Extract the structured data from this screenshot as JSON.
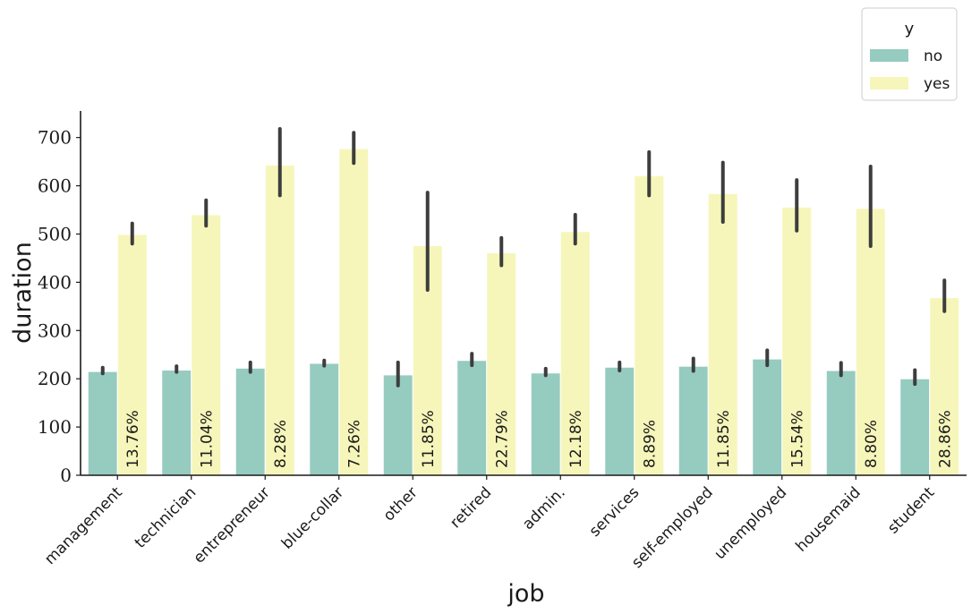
{
  "chart_data": {
    "type": "bar",
    "xlabel": "job",
    "ylabel": "duration",
    "ylim": [
      0,
      755
    ],
    "yticks": [
      0,
      100,
      200,
      300,
      400,
      500,
      600,
      700
    ],
    "categories": [
      "management",
      "technician",
      "entrepreneur",
      "blue-collar",
      "other",
      "retired",
      "admin.",
      "services",
      "self-employed",
      "unemployed",
      "housemaid",
      "student"
    ],
    "series": [
      {
        "name": "no",
        "color": "#96cbc0",
        "values": [
          215,
          218,
          222,
          232,
          208,
          238,
          212,
          224,
          226,
          241,
          217,
          200
        ],
        "ci_low": [
          211,
          214,
          214,
          227,
          186,
          228,
          207,
          217,
          216,
          228,
          207,
          189
        ],
        "ci_high": [
          223,
          226,
          234,
          238,
          234,
          252,
          221,
          234,
          242,
          259,
          233,
          218
        ]
      },
      {
        "name": "yes",
        "color": "#f6f6bb",
        "values": [
          499,
          540,
          643,
          677,
          476,
          461,
          505,
          621,
          584,
          556,
          553,
          368
        ],
        "ci_low": [
          480,
          517,
          580,
          647,
          384,
          435,
          480,
          580,
          525,
          507,
          475,
          340
        ],
        "ci_high": [
          522,
          570,
          718,
          710,
          586,
          492,
          540,
          670,
          648,
          612,
          640,
          404
        ]
      }
    ],
    "annotations": [
      "13.76%",
      "11.04%",
      "8.28%",
      "7.26%",
      "11.85%",
      "22.79%",
      "12.18%",
      "8.89%",
      "11.85%",
      "15.54%",
      "8.80%",
      "28.86%"
    ],
    "legend": {
      "title": "y",
      "position": "top-right",
      "entries": [
        "no",
        "yes"
      ]
    },
    "grid": false
  }
}
